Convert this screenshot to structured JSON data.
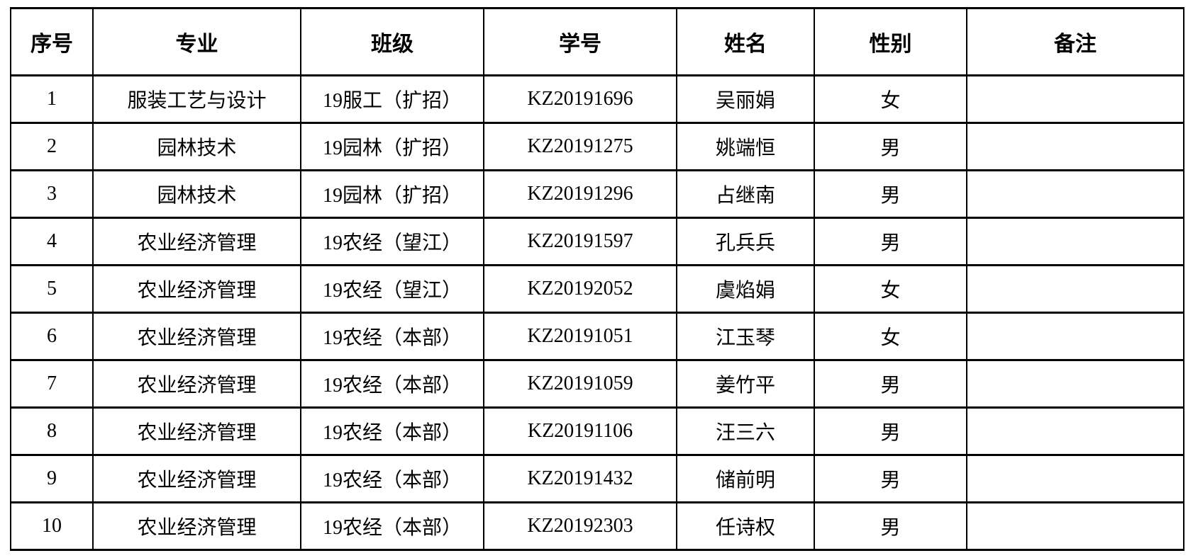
{
  "page": {
    "background_color": "#ffffff",
    "text_color": "#000000",
    "border_color": "#000000"
  },
  "table": {
    "columns": [
      "序号",
      "专业",
      "班级",
      "学号",
      "姓名",
      "性别",
      "备注"
    ],
    "rows": [
      [
        "1",
        "服装工艺与设计",
        "19服工（扩招）",
        "KZ20191696",
        "吴丽娟",
        "女",
        ""
      ],
      [
        "2",
        "园林技术",
        "19园林（扩招）",
        "KZ20191275",
        "姚端恒",
        "男",
        ""
      ],
      [
        "3",
        "园林技术",
        "19园林（扩招）",
        "KZ20191296",
        "占继南",
        "男",
        ""
      ],
      [
        "4",
        "农业经济管理",
        "19农经（望江）",
        "KZ20191597",
        "孔兵兵",
        "男",
        ""
      ],
      [
        "5",
        "农业经济管理",
        "19农经（望江）",
        "KZ20192052",
        "虞焰娟",
        "女",
        ""
      ],
      [
        "6",
        "农业经济管理",
        "19农经（本部）",
        "KZ20191051",
        "江玉琴",
        "女",
        ""
      ],
      [
        "7",
        "农业经济管理",
        "19农经（本部）",
        "KZ20191059",
        "姜竹平",
        "男",
        ""
      ],
      [
        "8",
        "农业经济管理",
        "19农经（本部）",
        "KZ20191106",
        "汪三六",
        "男",
        ""
      ],
      [
        "9",
        "农业经济管理",
        "19农经（本部）",
        "KZ20191432",
        "储前明",
        "男",
        ""
      ],
      [
        "10",
        "农业经济管理",
        "19农经（本部）",
        "KZ20192303",
        "任诗权",
        "男",
        ""
      ]
    ]
  }
}
